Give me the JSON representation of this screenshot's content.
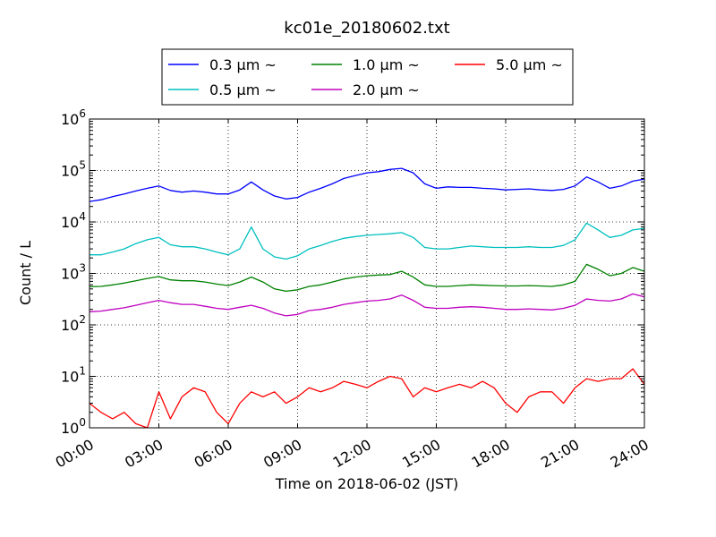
{
  "chart_data": {
    "type": "line",
    "title": "kc01e_20180602.txt",
    "xlabel": "Time on 2018-06-02 (JST)",
    "ylabel": "Count / L",
    "xlim": [
      0,
      24
    ],
    "ylim": [
      1,
      1000000
    ],
    "yscale": "log",
    "grid": true,
    "legend_position": "top-center",
    "x_ticks": [
      "00:00",
      "03:00",
      "06:00",
      "09:00",
      "12:00",
      "15:00",
      "18:00",
      "21:00",
      "24:00"
    ],
    "y_ticks": [
      {
        "base": "10",
        "exp": "0"
      },
      {
        "base": "10",
        "exp": "1"
      },
      {
        "base": "10",
        "exp": "2"
      },
      {
        "base": "10",
        "exp": "3"
      },
      {
        "base": "10",
        "exp": "4"
      },
      {
        "base": "10",
        "exp": "5"
      },
      {
        "base": "10",
        "exp": "6"
      }
    ],
    "x": [
      0,
      0.5,
      1,
      1.5,
      2,
      2.5,
      3,
      3.5,
      4,
      4.5,
      5,
      5.5,
      6,
      6.5,
      7,
      7.5,
      8,
      8.5,
      9,
      9.5,
      10,
      10.5,
      11,
      11.5,
      12,
      12.5,
      13,
      13.5,
      14,
      14.5,
      15,
      15.5,
      16,
      16.5,
      17,
      17.5,
      18,
      18.5,
      19,
      19.5,
      20,
      20.5,
      21,
      21.5,
      22,
      22.5,
      23,
      23.5,
      24
    ],
    "series": [
      {
        "name": "0.3 μm ~",
        "color": "#0000ff",
        "values": [
          25000,
          27000,
          31000,
          35000,
          40000,
          45000,
          50000,
          41000,
          38000,
          40000,
          38000,
          35000,
          35000,
          42000,
          60000,
          42000,
          32000,
          28000,
          30000,
          38000,
          45000,
          55000,
          70000,
          80000,
          90000,
          95000,
          105000,
          110000,
          90000,
          55000,
          45000,
          48000,
          47000,
          47000,
          45000,
          44000,
          42000,
          43000,
          44000,
          42000,
          41000,
          43000,
          50000,
          75000,
          60000,
          45000,
          50000,
          62000,
          68000
        ]
      },
      {
        "name": "0.5 μm ~",
        "color": "#00bfbf",
        "values": [
          2300,
          2300,
          2600,
          3000,
          3800,
          4500,
          5000,
          3600,
          3300,
          3300,
          3000,
          2600,
          2300,
          3000,
          8000,
          3000,
          2100,
          1900,
          2200,
          3000,
          3500,
          4200,
          4800,
          5200,
          5500,
          5700,
          5900,
          6200,
          5000,
          3200,
          3000,
          3000,
          3200,
          3400,
          3300,
          3200,
          3200,
          3200,
          3300,
          3200,
          3200,
          3500,
          4500,
          9500,
          7000,
          5000,
          5500,
          7000,
          7500
        ]
      },
      {
        "name": "1.0 μm ~",
        "color": "#008000",
        "values": [
          550,
          560,
          600,
          650,
          720,
          800,
          870,
          750,
          720,
          720,
          680,
          620,
          580,
          680,
          850,
          680,
          500,
          450,
          480,
          560,
          600,
          680,
          780,
          850,
          900,
          930,
          950,
          1100,
          850,
          600,
          560,
          560,
          580,
          600,
          590,
          580,
          570,
          570,
          580,
          570,
          560,
          600,
          700,
          1500,
          1200,
          900,
          1000,
          1300,
          1100
        ]
      },
      {
        "name": "2.0 μm ~",
        "color": "#bf00bf",
        "values": [
          180,
          185,
          200,
          215,
          240,
          270,
          300,
          270,
          250,
          250,
          230,
          210,
          200,
          220,
          240,
          210,
          170,
          150,
          160,
          190,
          200,
          220,
          250,
          270,
          290,
          300,
          320,
          380,
          300,
          220,
          210,
          210,
          220,
          225,
          220,
          210,
          200,
          200,
          205,
          200,
          195,
          210,
          240,
          320,
          300,
          290,
          320,
          400,
          350
        ]
      },
      {
        "name": "5.0 μm ~",
        "color": "#ff0000",
        "values": [
          3,
          2,
          1.5,
          2,
          1.2,
          1,
          5,
          1.5,
          4,
          6,
          5,
          2,
          1.2,
          3,
          5,
          4,
          5,
          3,
          4,
          6,
          5,
          6,
          8,
          7,
          6,
          8,
          10,
          9,
          4,
          6,
          5,
          6,
          7,
          6,
          8,
          6,
          3,
          2,
          4,
          5,
          5,
          3,
          6,
          9,
          8,
          9,
          9,
          14,
          7
        ]
      }
    ]
  }
}
